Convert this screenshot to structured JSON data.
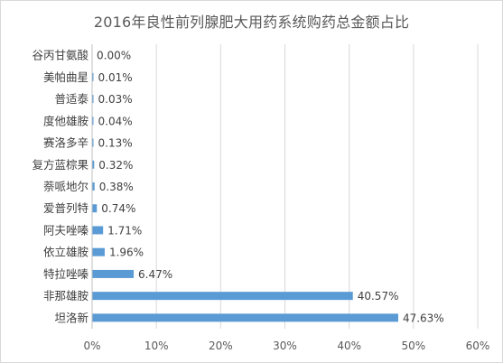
{
  "chart_data": {
    "type": "bar",
    "orientation": "horizontal",
    "title": "2016年良性前列腺肥大用药系统购药总金额占比",
    "xlabel": "",
    "ylabel": "",
    "xlim": [
      0,
      60
    ],
    "x_ticks": [
      "0%",
      "10%",
      "20%",
      "30%",
      "40%",
      "50%",
      "60%"
    ],
    "grid": "vertical",
    "legend": "none",
    "bar_color": "#5b9bd5",
    "categories": [
      "谷丙甘氨酸",
      "美帕曲星",
      "普适泰",
      "度他雄胺",
      "赛洛多辛",
      "复方蓝棕果",
      "萘哌地尔",
      "爱普列特",
      "阿夫唑嗪",
      "依立雄胺",
      "特拉唑嗪",
      "非那雄胺",
      "坦洛新"
    ],
    "values": [
      0.0,
      0.01,
      0.03,
      0.04,
      0.13,
      0.32,
      0.38,
      0.74,
      1.71,
      1.96,
      6.47,
      40.57,
      47.63
    ],
    "data_labels": [
      "0.00%",
      "0.01%",
      "0.03%",
      "0.04%",
      "0.13%",
      "0.32%",
      "0.38%",
      "0.74%",
      "1.71%",
      "1.96%",
      "6.47%",
      "40.57%",
      "47.63%"
    ]
  }
}
